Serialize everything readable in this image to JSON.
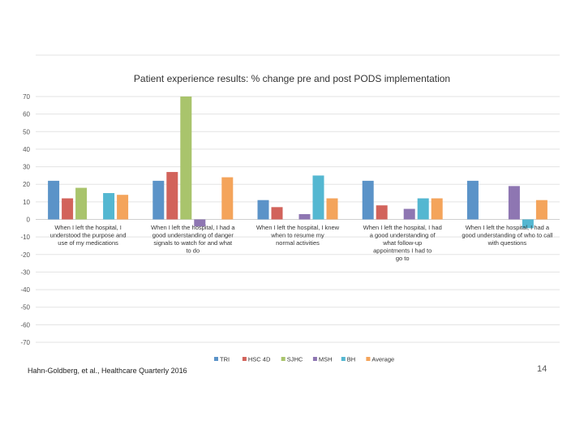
{
  "slide": {
    "citation": "Hahn-Goldberg, et al., Healthcare Quarterly 2016",
    "page_number": "14"
  },
  "chart_data": {
    "type": "bar",
    "title": "Patient experience results: % change pre and post PODS implementation",
    "xlabel": "",
    "ylabel": "",
    "ylim": [
      -70,
      70
    ],
    "yticks": [
      70,
      60,
      50,
      40,
      30,
      20,
      10,
      0,
      -10,
      -20,
      -30,
      -40,
      -50,
      -60,
      -70
    ],
    "grid": true,
    "legend_position": "bottom",
    "categories": [
      [
        "When I left the hospital, I",
        "understood the purpose and",
        "use of my medications"
      ],
      [
        "When I left the hospital, I had a",
        "good understanding of danger",
        "signals to watch for and what",
        "to do"
      ],
      [
        "When I left the hospital, I knew",
        "when to resume my",
        "normal activities"
      ],
      [
        "When I left the hospital, I had",
        "a good understanding of",
        "what follow-up",
        "appointments I had to",
        "go to"
      ],
      [
        "When I left the hospital, I had a",
        "good understanding of who to call",
        "with questions"
      ]
    ],
    "colors": [
      "#5b93c8",
      "#d2635b",
      "#a9c46c",
      "#8e76b2",
      "#54b7d1",
      "#f4a45b"
    ],
    "series": [
      {
        "name": "TRI",
        "values": [
          22,
          22,
          11,
          22,
          22
        ]
      },
      {
        "name": "HSC 4D",
        "values": [
          12,
          27,
          7,
          8,
          null
        ]
      },
      {
        "name": "SJHC",
        "values": [
          18,
          73,
          null,
          null,
          null
        ]
      },
      {
        "name": "MSH",
        "values": [
          null,
          -4,
          3,
          6,
          19
        ]
      },
      {
        "name": "BH",
        "values": [
          15,
          null,
          25,
          12,
          -5
        ]
      },
      {
        "name": "Average",
        "values": [
          14,
          24,
          12,
          12,
          11
        ]
      }
    ]
  }
}
